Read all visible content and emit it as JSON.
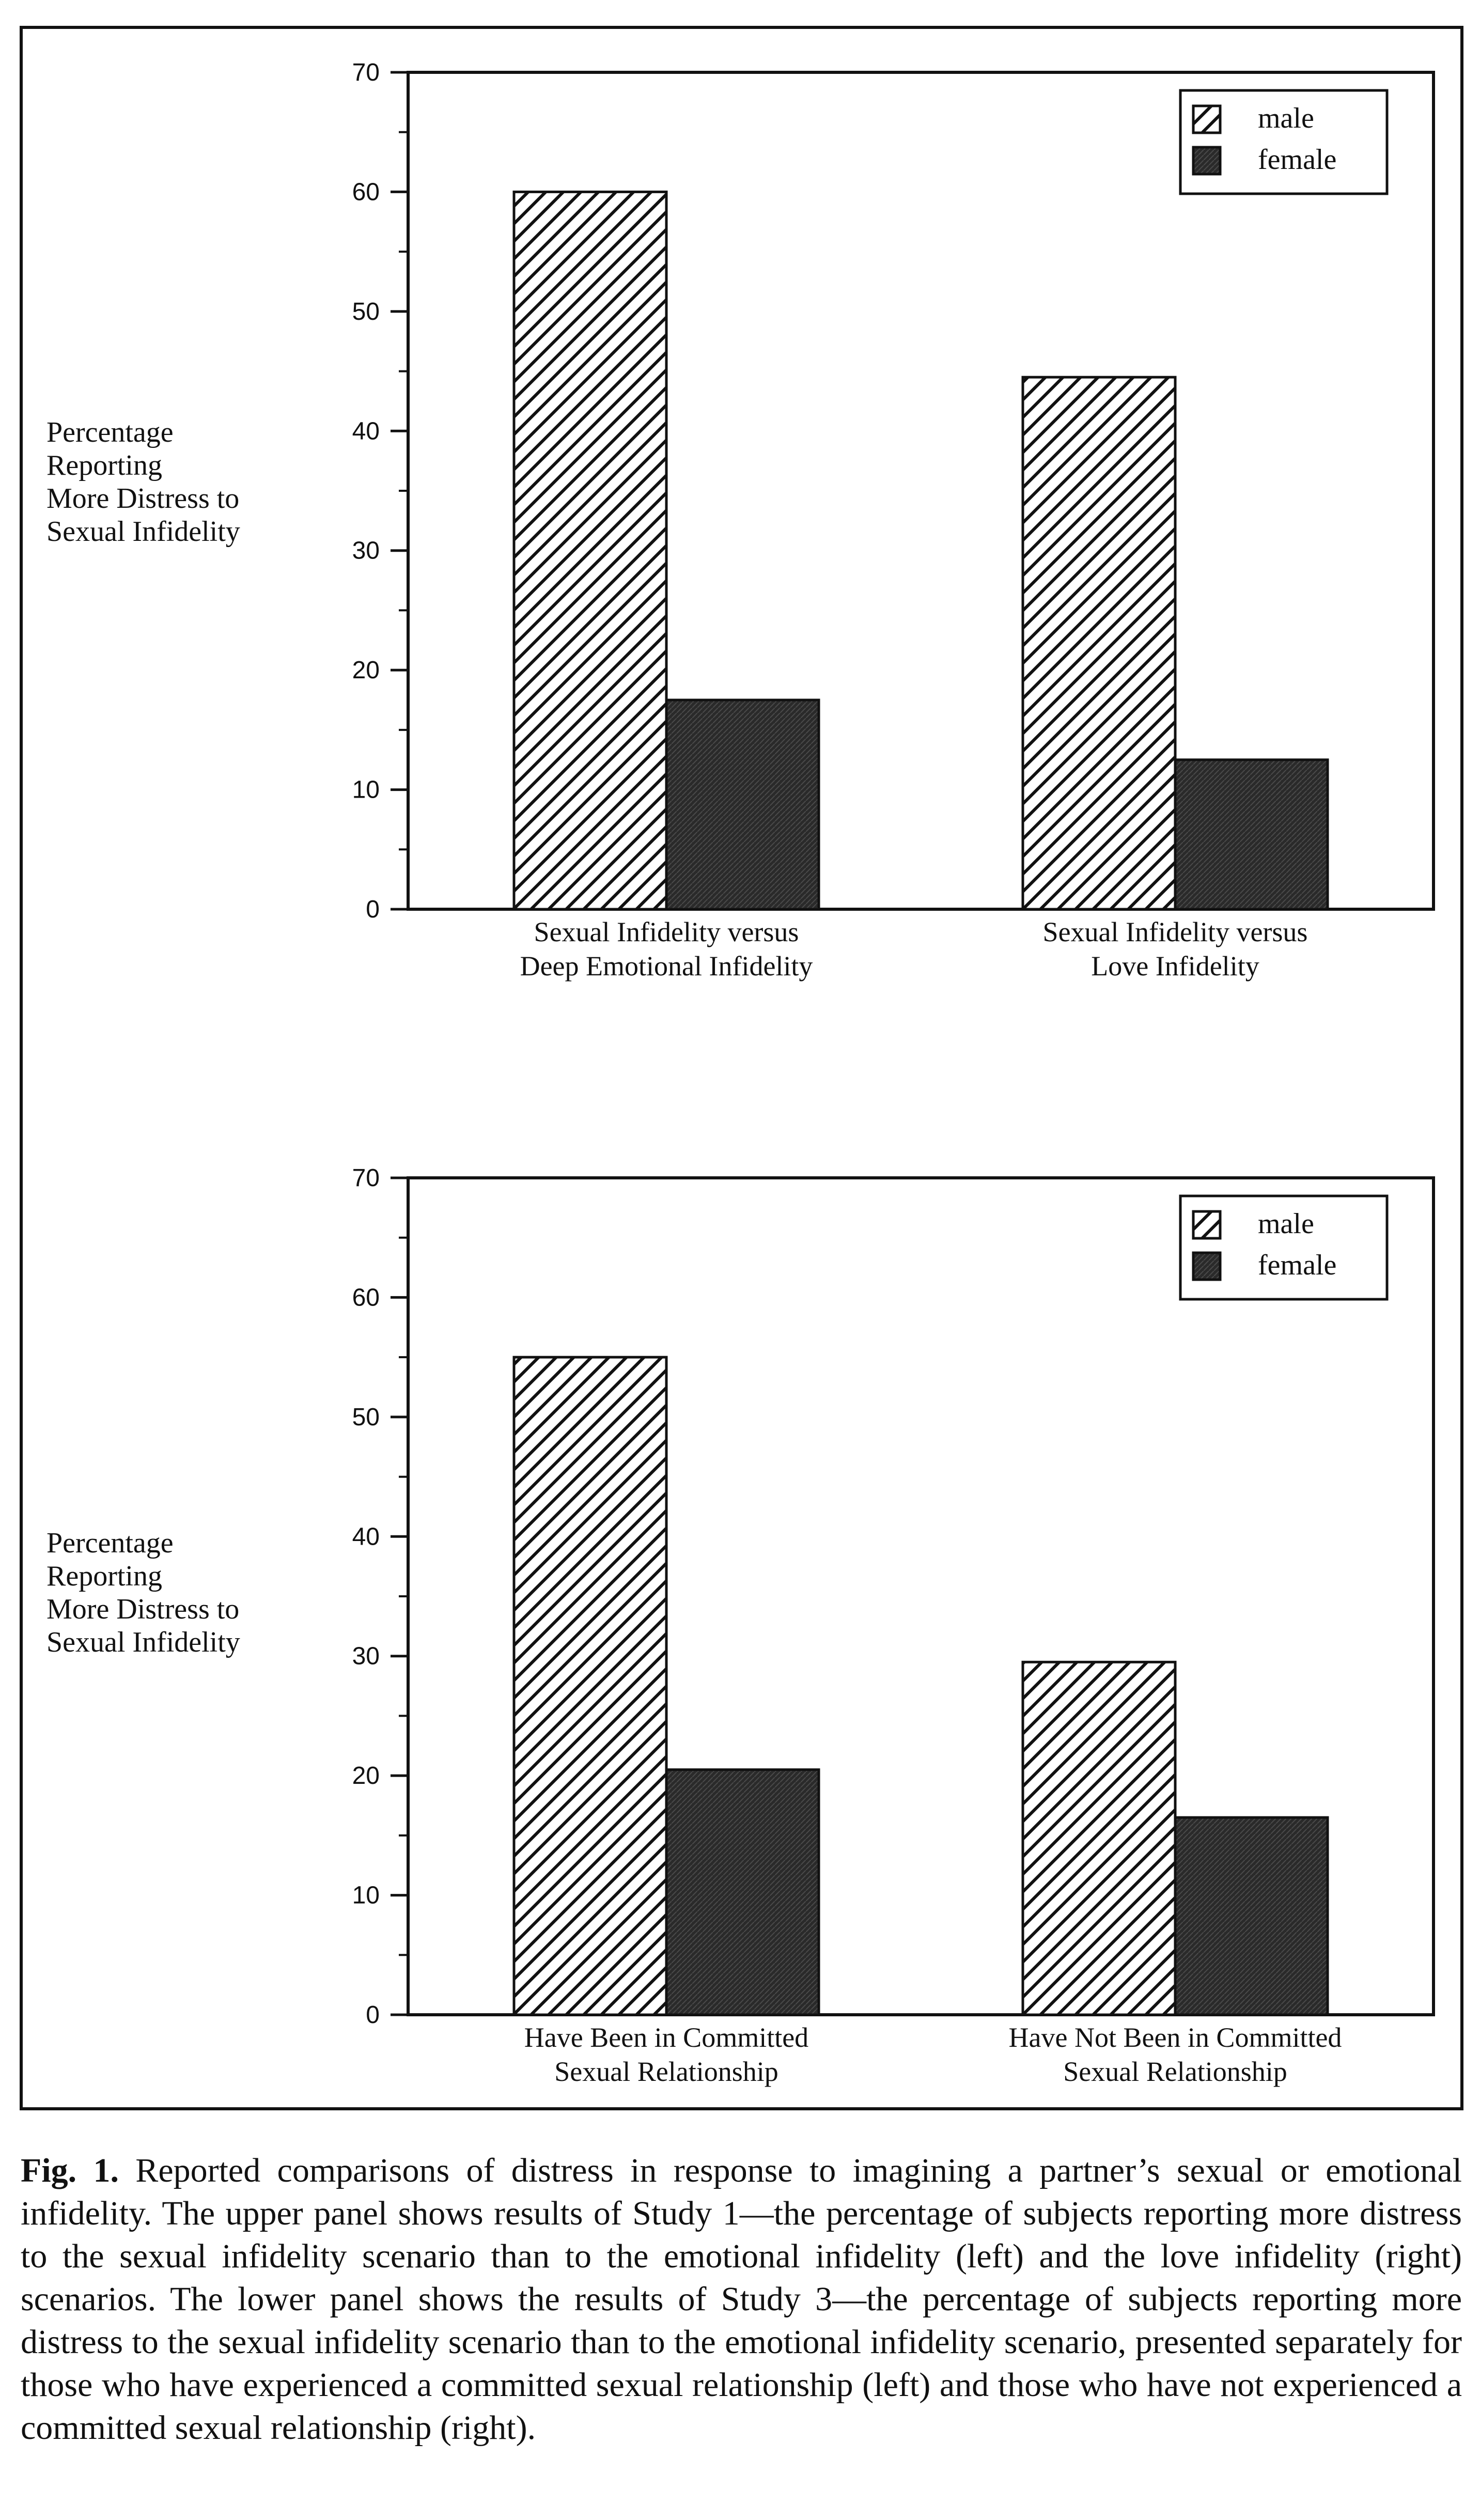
{
  "figure": {
    "caption_label": "Fig. 1.",
    "caption_text": "Reported comparisons of distress in response to imagining a partner’s sexual or emotional infidelity. The upper panel shows results of Study 1—the percentage of subjects reporting more distress to the sexual infidelity scenario than to the emotional infidelity (left) and the love infidelity (right) scenarios. The lower panel shows the results of Study 3—the percentage of subjects reporting more distress to the sexual infidelity scenario than to the emotional infidelity scenario, presented separately for those who have experienced a committed sexual relationship (left) and those who have not experienced a committed sexual relationship (right)."
  },
  "chart_data": [
    {
      "type": "bar",
      "ylabel": "Percentage\nReporting\nMore Distress to\nSexual Infidelity",
      "xlabel": "",
      "ylim": [
        0,
        70
      ],
      "yticks": [
        "0",
        "10",
        "20",
        "30",
        "40",
        "50",
        "60",
        "70"
      ],
      "categories": [
        [
          "Sexual Infidelity versus",
          "Deep Emotional Infidelity"
        ],
        [
          "Sexual Infidelity versus",
          "Love Infidelity"
        ]
      ],
      "series": [
        {
          "name": "male",
          "values": [
            60,
            44.5
          ],
          "pattern": "hatch"
        },
        {
          "name": "female",
          "values": [
            17.5,
            12.5
          ],
          "pattern": "dark"
        }
      ],
      "legend_position": "top-right",
      "grid": false
    },
    {
      "type": "bar",
      "ylabel": "Percentage\nReporting\nMore Distress to\nSexual Infidelity",
      "xlabel": "",
      "ylim": [
        0,
        70
      ],
      "yticks": [
        "0",
        "10",
        "20",
        "30",
        "40",
        "50",
        "60",
        "70"
      ],
      "categories": [
        [
          "Have Been in Committed",
          "Sexual Relationship"
        ],
        [
          "Have Not Been in Committed",
          "Sexual Relationship"
        ]
      ],
      "series": [
        {
          "name": "male",
          "values": [
            55,
            29.5
          ],
          "pattern": "hatch"
        },
        {
          "name": "female",
          "values": [
            20.5,
            16.5
          ],
          "pattern": "dark"
        }
      ],
      "legend_position": "top-right",
      "grid": false
    }
  ]
}
